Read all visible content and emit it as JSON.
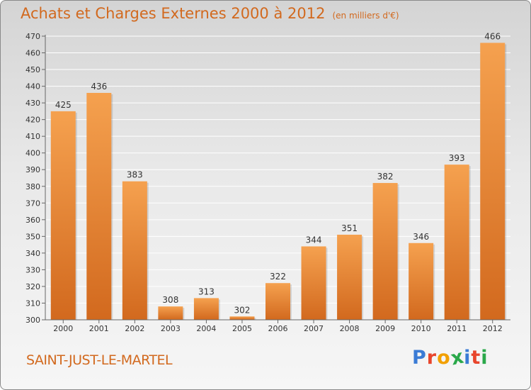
{
  "header": {
    "title": "Achats et Charges Externes 2000 à 2012",
    "unit": "(en milliers d'€)"
  },
  "footer": {
    "town": "SAINT-JUST-LE-MARTEL",
    "logo": "Proxiti"
  },
  "colors": {
    "bar_light": "#f5a14f",
    "bar_dark": "#d2691e",
    "title": "#d2691e",
    "logo_letters": [
      "#3a7bd5",
      "#e8452c",
      "#f2a000",
      "#2aa84a",
      "#3a7bd5",
      "#e8452c",
      "#2aa84a"
    ]
  },
  "chart_data": {
    "type": "bar",
    "title": "Achats et Charges Externes 2000 à 2012",
    "subtitle": "(en milliers d'€)",
    "xlabel": "",
    "ylabel": "",
    "categories": [
      "2000",
      "2001",
      "2002",
      "2003",
      "2004",
      "2005",
      "2006",
      "2007",
      "2008",
      "2009",
      "2010",
      "2011",
      "2012"
    ],
    "values": [
      425,
      436,
      383,
      308,
      313,
      302,
      322,
      344,
      351,
      382,
      346,
      393,
      466
    ],
    "ylim": [
      300,
      470
    ],
    "yticks": [
      300,
      310,
      320,
      330,
      340,
      350,
      360,
      370,
      380,
      390,
      400,
      410,
      420,
      430,
      440,
      450,
      460,
      470
    ],
    "grid": true,
    "legend": "none"
  }
}
